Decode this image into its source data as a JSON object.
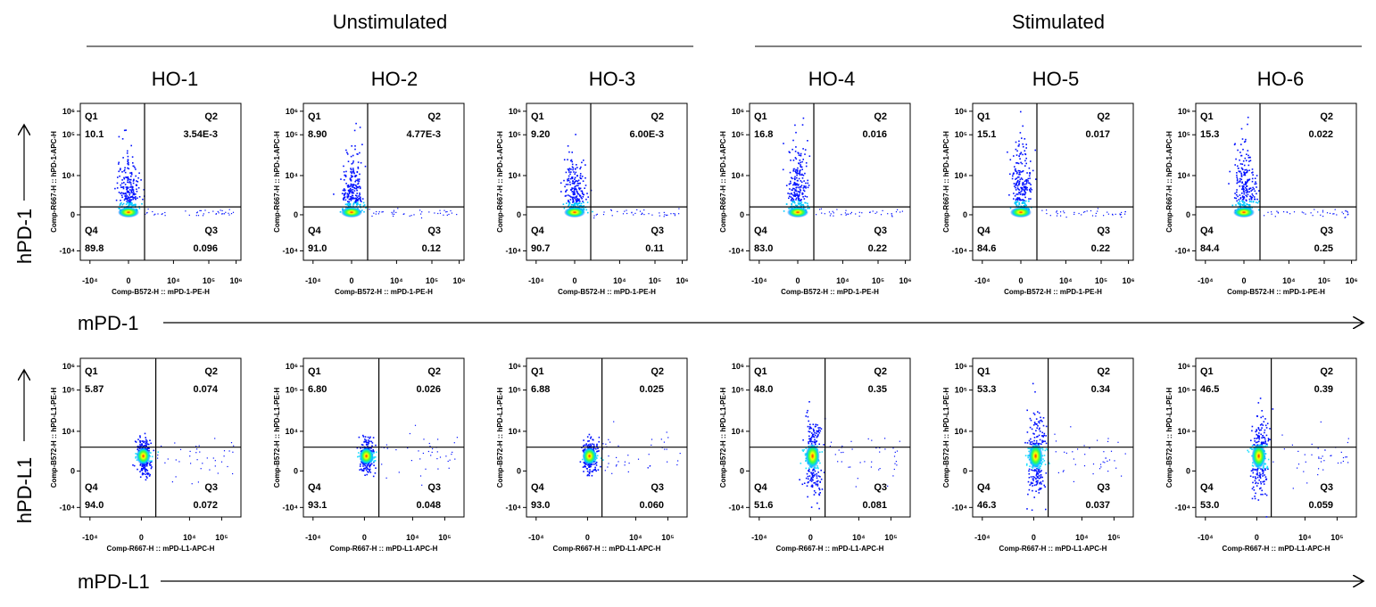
{
  "groups": [
    "Unstimulated",
    "Stimulated"
  ],
  "samples": [
    "HO-1",
    "HO-2",
    "HO-3",
    "HO-4",
    "HO-5",
    "HO-6"
  ],
  "side_labels": {
    "row1_y": "hPD-1",
    "row1_x": "mPD-1",
    "row2_y": "hPD-L1",
    "row2_x": "mPD-L1"
  },
  "colors": {
    "density_low": "#0000ff",
    "density_mid": "#00d0ff",
    "density_mid2": "#40ff40",
    "density_high": "#ffff00",
    "density_peak": "#ff2000",
    "axis": "#000000"
  },
  "chart_data": [
    {
      "type": "scatter",
      "subtype": "flow-cytometry-density-quadrant",
      "row": "hPD-1 vs mPD-1",
      "xlabel": "Comp-B572-H :: mPD-1-PE-H",
      "ylabel": "Comp-R667-H :: hPD-1-APC-H",
      "x_ticks": [
        "-10⁴",
        "0",
        "10⁴",
        "10⁵",
        "10⁶"
      ],
      "y_ticks": [
        "10⁶",
        "10⁵",
        "10⁴",
        "0",
        "-10⁴"
      ],
      "quadrant_labels": [
        "Q1",
        "Q2",
        "Q3",
        "Q4"
      ],
      "panels": [
        {
          "sample": "HO-1",
          "Q1": "10.1",
          "Q2": "3.54E-3",
          "Q3": "0.096",
          "Q4": "89.8"
        },
        {
          "sample": "HO-2",
          "Q1": "8.90",
          "Q2": "4.77E-3",
          "Q3": "0.12",
          "Q4": "91.0"
        },
        {
          "sample": "HO-3",
          "Q1": "9.20",
          "Q2": "6.00E-3",
          "Q3": "0.11",
          "Q4": "90.7"
        },
        {
          "sample": "HO-4",
          "Q1": "16.8",
          "Q2": "0.016",
          "Q3": "0.22",
          "Q4": "83.0"
        },
        {
          "sample": "HO-5",
          "Q1": "15.1",
          "Q2": "0.017",
          "Q3": "0.22",
          "Q4": "84.6"
        },
        {
          "sample": "HO-6",
          "Q1": "15.3",
          "Q2": "0.022",
          "Q3": "0.25",
          "Q4": "84.4"
        }
      ]
    },
    {
      "type": "scatter",
      "subtype": "flow-cytometry-density-quadrant",
      "row": "hPD-L1 vs mPD-L1",
      "xlabel": "Comp-R667-H :: mPD-L1-APC-H",
      "ylabel": "Comp-B572-H :: hPD-L1-PE-H",
      "x_ticks": [
        "-10⁴",
        "0",
        "10⁴",
        "10⁵"
      ],
      "y_ticks": [
        "10⁶",
        "10⁵",
        "10⁴",
        "0",
        "-10⁴"
      ],
      "quadrant_labels": [
        "Q1",
        "Q2",
        "Q3",
        "Q4"
      ],
      "panels": [
        {
          "sample": "HO-1",
          "Q1": "5.87",
          "Q2": "0.074",
          "Q3": "0.072",
          "Q4": "94.0"
        },
        {
          "sample": "HO-2",
          "Q1": "6.80",
          "Q2": "0.026",
          "Q3": "0.048",
          "Q4": "93.1"
        },
        {
          "sample": "HO-3",
          "Q1": "6.88",
          "Q2": "0.025",
          "Q3": "0.060",
          "Q4": "93.0"
        },
        {
          "sample": "HO-4",
          "Q1": "48.0",
          "Q2": "0.35",
          "Q3": "0.081",
          "Q4": "51.6"
        },
        {
          "sample": "HO-5",
          "Q1": "53.3",
          "Q2": "0.34",
          "Q3": "0.037",
          "Q4": "46.3"
        },
        {
          "sample": "HO-6",
          "Q1": "46.5",
          "Q2": "0.39",
          "Q3": "0.059",
          "Q4": "53.0"
        }
      ]
    }
  ]
}
